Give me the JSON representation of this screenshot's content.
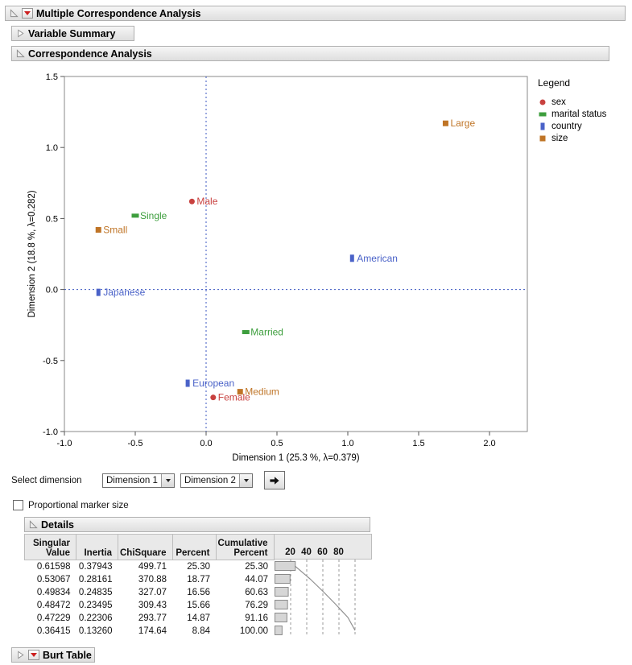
{
  "outline": {
    "main_title": "Multiple Correspondence Analysis",
    "variable_summary_title": "Variable Summary",
    "correspondence_title": "Correspondence Analysis",
    "details_title": "Details",
    "burt_title": "Burt Table"
  },
  "chart_data": {
    "type": "scatter",
    "xlabel": "Dimension 1  (25.3 %, λ=0.379)",
    "ylabel": "Dimension 2  (18.8 %, λ=0.282)",
    "xlim": [
      -1.0,
      2.267
    ],
    "ylim": [
      -1.0,
      1.5
    ],
    "xticks": [
      "-1.0",
      "-0.5",
      "0.0",
      "0.5",
      "1.0",
      "1.5",
      "2.0"
    ],
    "yticks": [
      "1.5",
      "1.0",
      "0.5",
      "0.0",
      "-0.5",
      "-1.0"
    ],
    "grid": false,
    "reference_lines": {
      "x": 0.0,
      "y": 0.0,
      "style": "dotted",
      "color": "#3a55c0"
    },
    "legend": {
      "title": "Legend",
      "position": "right"
    },
    "series": [
      {
        "name": "sex",
        "color": "#c8413f",
        "marker": "circle",
        "points": [
          {
            "label": "Male",
            "x": -0.1,
            "y": 0.62
          },
          {
            "label": "Female",
            "x": 0.05,
            "y": -0.76
          }
        ]
      },
      {
        "name": "marital status",
        "color": "#3d9e3d",
        "marker": "hbar",
        "points": [
          {
            "label": "Single",
            "x": -0.5,
            "y": 0.52
          },
          {
            "label": "Married",
            "x": 0.28,
            "y": -0.3
          }
        ]
      },
      {
        "name": "country",
        "color": "#4a62c8",
        "marker": "vbar",
        "points": [
          {
            "label": "American",
            "x": 1.03,
            "y": 0.22
          },
          {
            "label": "Japanese",
            "x": -0.76,
            "y": -0.02
          },
          {
            "label": "European",
            "x": -0.13,
            "y": -0.66
          }
        ]
      },
      {
        "name": "size",
        "color": "#bf7426",
        "marker": "square",
        "points": [
          {
            "label": "Large",
            "x": 1.69,
            "y": 1.17
          },
          {
            "label": "Small",
            "x": -0.76,
            "y": 0.42
          },
          {
            "label": "Medium",
            "x": 0.24,
            "y": -0.72
          }
        ]
      }
    ]
  },
  "controls": {
    "select_dimension_label": "Select dimension",
    "dimension_1_value": "Dimension 1",
    "dimension_2_value": "Dimension 2",
    "proportional_marker_label": "Proportional marker size"
  },
  "details_table": {
    "headers": [
      "Singular\nValue",
      "Inertia",
      "ChiSquare",
      "Percent",
      "Cumulative\nPercent"
    ],
    "scale_ticks": [
      "20",
      "40",
      "60",
      "80"
    ],
    "rows": [
      [
        "0.61598",
        "0.37943",
        "499.71",
        "25.30",
        "25.30"
      ],
      [
        "0.53067",
        "0.28161",
        "370.88",
        "18.77",
        "44.07"
      ],
      [
        "0.49834",
        "0.24835",
        "327.07",
        "16.56",
        "60.63"
      ],
      [
        "0.48472",
        "0.23495",
        "309.43",
        "15.66",
        "76.29"
      ],
      [
        "0.47229",
        "0.22306",
        "293.77",
        "14.87",
        "91.16"
      ],
      [
        "0.36415",
        "0.13260",
        "174.64",
        "8.84",
        "100.00"
      ]
    ],
    "bar_values_percent": [
      25.3,
      18.77,
      16.56,
      15.66,
      14.87,
      8.84
    ],
    "line_values_cumulative": [
      25.3,
      44.07,
      60.63,
      76.29,
      91.16,
      100.0
    ]
  }
}
